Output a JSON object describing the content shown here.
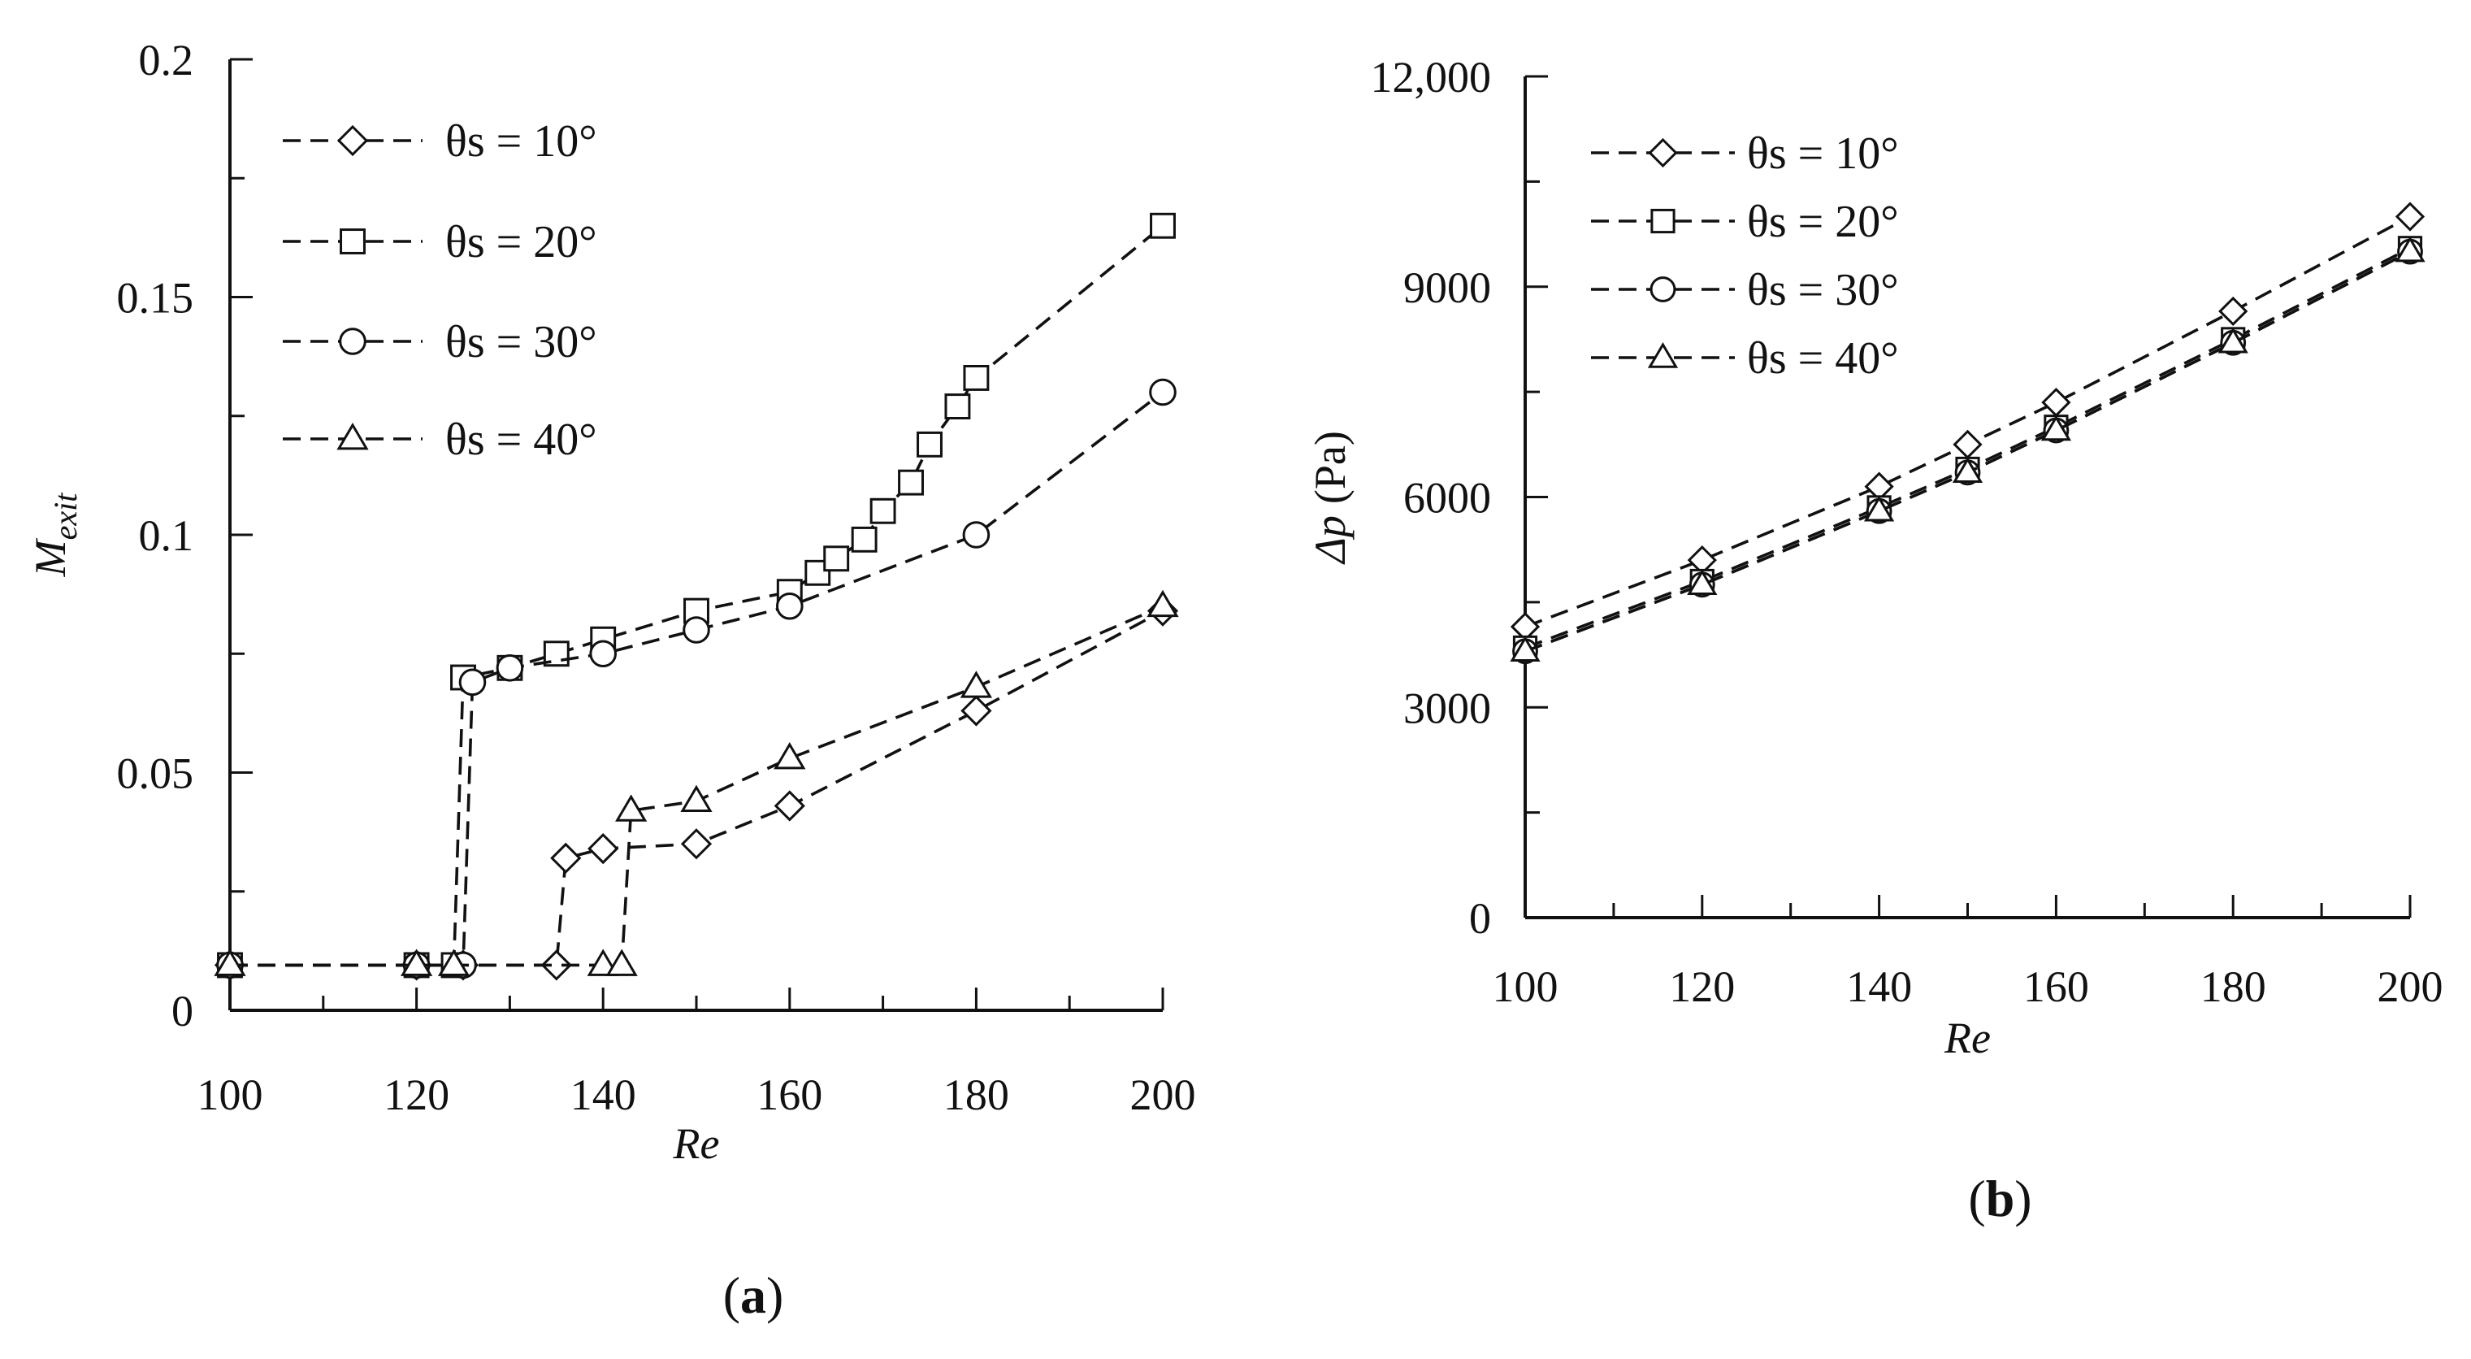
{
  "chart_data": [
    {
      "type": "line",
      "panel_label": "a",
      "title": "",
      "xlabel": "Re",
      "ylabel": {
        "main": "M",
        "sub": "exit"
      },
      "xlim": [
        100,
        200
      ],
      "ylim": [
        0,
        0.2
      ],
      "x_major_ticks": [
        100,
        120,
        140,
        160,
        180,
        200
      ],
      "x_tick_labels": [
        "100",
        "120",
        "140",
        "160",
        "180",
        "200"
      ],
      "x_minor_step": 10,
      "y_major_ticks": [
        0,
        0.05,
        0.1,
        0.15,
        0.2
      ],
      "y_tick_labels": [
        "0",
        "0.05",
        "0.1",
        "0.15",
        "0.2"
      ],
      "legend_position": "top-left",
      "series": [
        {
          "name": "θs = 10°",
          "marker": "diamond",
          "x": [
            100,
            120,
            125,
            135,
            136,
            140,
            150,
            160,
            180,
            200
          ],
          "y": [
            0.0095,
            0.0095,
            0.0095,
            0.0095,
            0.032,
            0.034,
            0.035,
            0.043,
            0.063,
            0.084
          ]
        },
        {
          "name": "θs = 20°",
          "marker": "square",
          "x": [
            100,
            120,
            124,
            125,
            130,
            135,
            140,
            150,
            160,
            163,
            165,
            168,
            170,
            173,
            175,
            178,
            180,
            200
          ],
          "y": [
            0.0095,
            0.0095,
            0.0095,
            0.07,
            0.072,
            0.075,
            0.078,
            0.084,
            0.088,
            0.092,
            0.095,
            0.099,
            0.105,
            0.111,
            0.119,
            0.127,
            0.133,
            0.165
          ]
        },
        {
          "name": "θs = 30°",
          "marker": "circle",
          "x": [
            100,
            120,
            125,
            126,
            130,
            140,
            150,
            160,
            180,
            200
          ],
          "y": [
            0.0095,
            0.0095,
            0.0095,
            0.069,
            0.072,
            0.075,
            0.08,
            0.085,
            0.1,
            0.13
          ]
        },
        {
          "name": "θs = 40°",
          "marker": "triangle",
          "x": [
            100,
            120,
            124,
            140,
            142,
            143,
            150,
            160,
            180,
            200
          ],
          "y": [
            0.0095,
            0.0095,
            0.0095,
            0.0095,
            0.0095,
            0.042,
            0.044,
            0.053,
            0.068,
            0.085
          ]
        }
      ]
    },
    {
      "type": "line",
      "panel_label": "b",
      "title": "",
      "xlabel": "Re",
      "ylabel": {
        "main": "Δp",
        "unit": "(Pa)"
      },
      "xlim": [
        100,
        200
      ],
      "ylim": [
        0,
        12000
      ],
      "x_major_ticks": [
        100,
        120,
        140,
        160,
        180,
        200
      ],
      "x_tick_labels": [
        "100",
        "120",
        "140",
        "160",
        "180",
        "200"
      ],
      "x_minor_step": 10,
      "y_major_ticks": [
        0,
        3000,
        6000,
        9000,
        12000
      ],
      "y_tick_labels": [
        "0",
        "3000",
        "6000",
        "9000",
        "12,000"
      ],
      "legend_position": "top-left",
      "series": [
        {
          "name": "θs = 10°",
          "marker": "diamond",
          "x": [
            100,
            120,
            140,
            150,
            160,
            180,
            200
          ],
          "y": [
            4150,
            5100,
            6150,
            6750,
            7350,
            8650,
            10000
          ]
        },
        {
          "name": "θs = 20°",
          "marker": "square",
          "x": [
            100,
            120,
            140,
            150,
            160,
            180,
            200
          ],
          "y": [
            3850,
            4800,
            5850,
            6400,
            7000,
            8250,
            9550
          ]
        },
        {
          "name": "θs = 30°",
          "marker": "circle",
          "x": [
            100,
            120,
            140,
            150,
            160,
            180,
            200
          ],
          "y": [
            3800,
            4750,
            5800,
            6350,
            6950,
            8200,
            9500
          ]
        },
        {
          "name": "θs = 40°",
          "marker": "triangle",
          "x": [
            100,
            120,
            140,
            150,
            160,
            180,
            200
          ],
          "y": [
            3800,
            4750,
            5800,
            6350,
            6950,
            8200,
            9500
          ]
        }
      ]
    }
  ]
}
